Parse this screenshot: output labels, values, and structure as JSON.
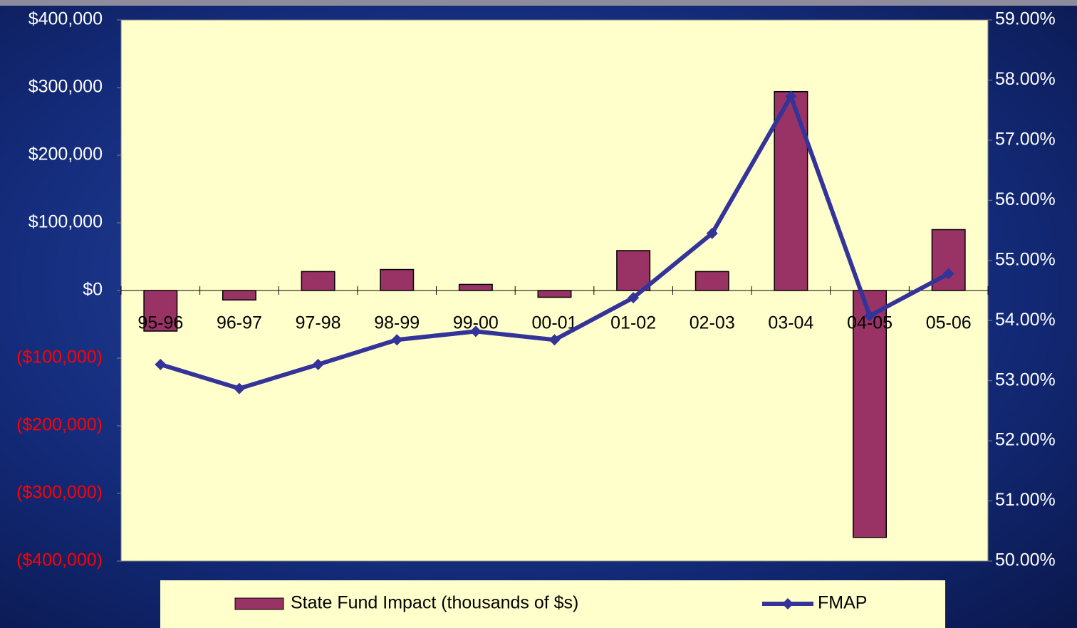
{
  "chart_data": {
    "type": "combo",
    "categories": [
      "95-96",
      "96-97",
      "97-98",
      "98-99",
      "99-00",
      "00-01",
      "01-02",
      "02-03",
      "03-04",
      "04-05",
      "05-06"
    ],
    "series": [
      {
        "name": "State Fund Impact (thousands of $s)",
        "type": "bar",
        "color": "#993366",
        "axis": "y",
        "values": [
          -60000,
          -14000,
          28000,
          31000,
          9000,
          -10000,
          59000,
          28000,
          294000,
          -365000,
          90000
        ]
      },
      {
        "name": "FMAP",
        "type": "line",
        "color": "#333399",
        "axis": "y2",
        "values": [
          53.27,
          52.87,
          53.27,
          53.68,
          53.82,
          53.68,
          54.38,
          55.45,
          57.73,
          54.08,
          54.78
        ]
      }
    ],
    "ylim": [
      -400000,
      400000
    ],
    "yticks": [
      {
        "value": 400000,
        "label": "$400,000"
      },
      {
        "value": 300000,
        "label": "$300,000"
      },
      {
        "value": 200000,
        "label": "$200,000"
      },
      {
        "value": 100000,
        "label": "$100,000"
      },
      {
        "value": 0,
        "label": "$0"
      },
      {
        "value": -100000,
        "label": "($100,000)"
      },
      {
        "value": -200000,
        "label": "($200,000)"
      },
      {
        "value": -300000,
        "label": "($300,000)"
      },
      {
        "value": -400000,
        "label": "($400,000)"
      }
    ],
    "y2lim": [
      50,
      59
    ],
    "y2ticks": [
      {
        "value": 59,
        "label": "59.00%"
      },
      {
        "value": 58,
        "label": "58.00%"
      },
      {
        "value": 57,
        "label": "57.00%"
      },
      {
        "value": 56,
        "label": "56.00%"
      },
      {
        "value": 55,
        "label": "55.00%"
      },
      {
        "value": 54,
        "label": "54.00%"
      },
      {
        "value": 53,
        "label": "53.00%"
      },
      {
        "value": 52,
        "label": "52.00%"
      },
      {
        "value": 51,
        "label": "51.00%"
      },
      {
        "value": 50,
        "label": "50.00%"
      }
    ],
    "negative_tick_color": "#ff0000",
    "legend": "bottom"
  }
}
